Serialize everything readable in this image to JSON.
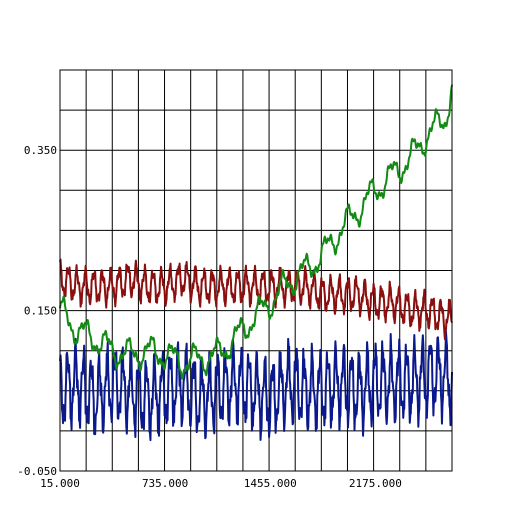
{
  "chart_data": {
    "type": "line",
    "title": "",
    "xlabel": "",
    "ylabel": "",
    "xlim": [
      15,
      2700
    ],
    "ylim": [
      -0.05,
      0.45
    ],
    "grid": true,
    "background": "#ffffff",
    "grid_color": "#000000",
    "x_ticks": [
      {
        "value": 15,
        "label": "15.000"
      },
      {
        "value": 735,
        "label": "735.000"
      },
      {
        "value": 1455,
        "label": "1455.000"
      },
      {
        "value": 2175,
        "label": "2175.000"
      }
    ],
    "y_ticks": [
      {
        "value": -0.05,
        "label": "-0.050"
      },
      {
        "value": 0.15,
        "label": "0.150"
      },
      {
        "value": 0.35,
        "label": "0.350"
      }
    ],
    "x": [
      15,
      135,
      255,
      375,
      495,
      615,
      735,
      855,
      975,
      1095,
      1215,
      1335,
      1455,
      1575,
      1695,
      1815,
      1935,
      2055,
      2175,
      2295,
      2415,
      2535,
      2655,
      2700
    ],
    "series": [
      {
        "color": "#0a1a8c",
        "values": [
          0.05,
          0.06,
          0.04,
          0.06,
          0.05,
          0.04,
          0.05,
          0.06,
          0.04,
          0.05,
          0.06,
          0.05,
          0.04,
          0.06,
          0.05,
          0.05,
          0.06,
          0.05,
          0.06,
          0.06,
          0.06,
          0.07,
          0.07,
          0.06
        ],
        "amplitude": 0.04,
        "period": 54
      },
      {
        "color": "#8b0f0f",
        "values": [
          0.19,
          0.18,
          0.18,
          0.18,
          0.19,
          0.18,
          0.18,
          0.19,
          0.18,
          0.18,
          0.18,
          0.18,
          0.18,
          0.18,
          0.18,
          0.17,
          0.17,
          0.17,
          0.16,
          0.16,
          0.15,
          0.15,
          0.14,
          0.14
        ],
        "amplitude": 0.018,
        "period": 58
      },
      {
        "color": "#138a13",
        "values": [
          0.15,
          0.125,
          0.115,
          0.1,
          0.095,
          0.1,
          0.095,
          0.085,
          0.09,
          0.095,
          0.115,
          0.14,
          0.16,
          0.185,
          0.2,
          0.22,
          0.25,
          0.275,
          0.3,
          0.32,
          0.34,
          0.37,
          0.39,
          0.43
        ],
        "amplitude": 0.015,
        "period": 150
      }
    ]
  }
}
